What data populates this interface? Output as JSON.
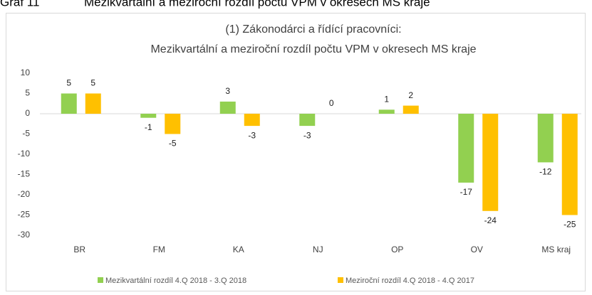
{
  "caption": {
    "label": "Graf 11",
    "text": "Mezikvartální a meziroční rozdíl počtu VPM v okresech MS kraje"
  },
  "chart_data": {
    "type": "bar",
    "title": "(1) Zákonodárci a řídící pracovníci:",
    "subtitle": "Mezikvartální a meziroční rozdíl počtu VPM v okresech MS kraje",
    "categories": [
      "BR",
      "FM",
      "KA",
      "NJ",
      "OP",
      "OV",
      "MS kraj"
    ],
    "series": [
      {
        "name": "Mezikvartální rozdíl 4.Q 2018 - 3.Q 2018",
        "color": "#92d050",
        "values": [
          5,
          -1,
          3,
          -3,
          1,
          -17,
          -12
        ]
      },
      {
        "name": "Meziroční rozdíl 4.Q 2018 - 4.Q 2017",
        "color": "#ffc000",
        "values": [
          5,
          -5,
          -3,
          0,
          2,
          -24,
          -25
        ]
      }
    ],
    "ylim": [
      -30,
      10
    ],
    "yticks": [
      10,
      5,
      0,
      -5,
      -10,
      -15,
      -20,
      -25,
      -30
    ],
    "legend": "bottom"
  }
}
